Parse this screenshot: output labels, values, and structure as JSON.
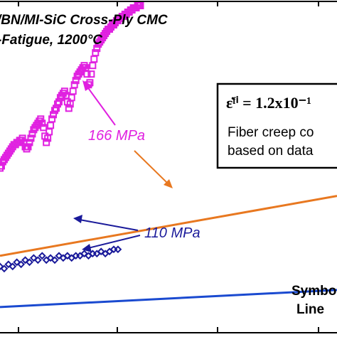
{
  "chart_data": {
    "type": "scatter",
    "title_lines": [
      "/BN/MI-SiC Cross-Ply CMC",
      "-Fatigue, 1200°C"
    ],
    "series": [
      {
        "name": "166 MPa",
        "kind": "measured",
        "color": "#e020e0",
        "marker": "square",
        "x": [
          0,
          1,
          2,
          3,
          4,
          5,
          6,
          7,
          8,
          9,
          10,
          11,
          12,
          13,
          14,
          15,
          16,
          17,
          18,
          19,
          20,
          21,
          22,
          23,
          24,
          25,
          26,
          27,
          28,
          29,
          30,
          31,
          32,
          33,
          34,
          35,
          36,
          37,
          38,
          39,
          40,
          41,
          42,
          43,
          44,
          45,
          46,
          47,
          48,
          49,
          50,
          51,
          52,
          53,
          54,
          55,
          56,
          57,
          58,
          59,
          60,
          61,
          62,
          63,
          64,
          65,
          66,
          67,
          68,
          69,
          70,
          71,
          72,
          73,
          74,
          75,
          76,
          77,
          78,
          79,
          80,
          81,
          82,
          83,
          84,
          85,
          86,
          87,
          88,
          89,
          90,
          91,
          92,
          93,
          94,
          95,
          96,
          97,
          98,
          99,
          100
        ],
        "y": [
          0.02,
          0.03,
          0.05,
          0.06,
          0.07,
          0.08,
          0.09,
          0.1,
          0.11,
          0.12,
          0.13,
          0.13,
          0.14,
          0.14,
          0.15,
          0.15,
          0.16,
          0.14,
          0.12,
          0.11,
          0.12,
          0.14,
          0.16,
          0.18,
          0.2,
          0.21,
          0.22,
          0.23,
          0.24,
          0.25,
          0.23,
          0.21,
          0.17,
          0.14,
          0.16,
          0.19,
          0.22,
          0.25,
          0.27,
          0.29,
          0.3,
          0.32,
          0.33,
          0.35,
          0.36,
          0.37,
          0.38,
          0.36,
          0.33,
          0.3,
          0.32,
          0.35,
          0.38,
          0.41,
          0.43,
          0.45,
          0.46,
          0.47,
          0.48,
          0.49,
          0.5,
          0.49,
          0.46,
          0.41,
          0.42,
          0.46,
          0.5,
          0.53,
          0.56,
          0.58,
          0.6,
          0.61,
          0.62,
          0.63,
          0.64,
          0.65,
          0.66,
          0.67,
          0.67,
          0.68,
          0.69,
          0.69,
          0.7,
          0.71,
          0.71,
          0.72,
          0.72,
          0.73,
          0.73,
          0.74,
          0.74,
          0.75,
          0.75,
          0.76,
          0.76,
          0.77,
          0.77,
          0.77,
          0.78,
          0.78,
          0.78
        ]
      },
      {
        "name": "110 MPa",
        "kind": "measured",
        "color": "#1a1a9a",
        "marker": "diamond",
        "x": [
          0,
          3,
          6,
          9,
          12,
          15,
          18,
          21,
          24,
          27,
          30,
          33,
          36,
          39,
          42,
          45,
          48,
          51,
          54,
          57,
          60,
          63,
          66,
          69,
          72,
          75,
          78,
          81,
          84
        ],
        "y": [
          -0.44,
          -0.45,
          -0.43,
          -0.44,
          -0.42,
          -0.43,
          -0.41,
          -0.42,
          -0.4,
          -0.41,
          -0.39,
          -0.41,
          -0.4,
          -0.41,
          -0.39,
          -0.4,
          -0.39,
          -0.4,
          -0.39,
          -0.39,
          -0.38,
          -0.39,
          -0.38,
          -0.38,
          -0.37,
          -0.38,
          -0.37,
          -0.36,
          -0.36
        ]
      },
      {
        "name": "166 MPa",
        "kind": "fiber-creep-line",
        "color": "#e87820",
        "x": [
          0,
          240
        ],
        "y": [
          -0.39,
          -0.11
        ]
      },
      {
        "name": "110 MPa",
        "kind": "fiber-creep-line",
        "color": "#1a4ad0",
        "x": [
          0,
          240
        ],
        "y": [
          -0.63,
          -0.55
        ]
      }
    ],
    "annotations": {
      "label_166": "166 MPa",
      "label_110": "110 MPa",
      "equation": "ε̇ᶠⁱ = 1.2x10⁻¹",
      "box_line1": "Fiber creep co",
      "box_line2": "based on data",
      "note_line1": "Symbo",
      "note_line2": "Line"
    },
    "x_range": [
      0,
      240
    ],
    "y_range": [
      -0.75,
      0.8
    ],
    "grid": false,
    "colors": {
      "magenta": "#e020e0",
      "orange": "#e87820",
      "navy": "#1a1a9a",
      "blue": "#1a4ad0",
      "axis": "#000000"
    }
  }
}
